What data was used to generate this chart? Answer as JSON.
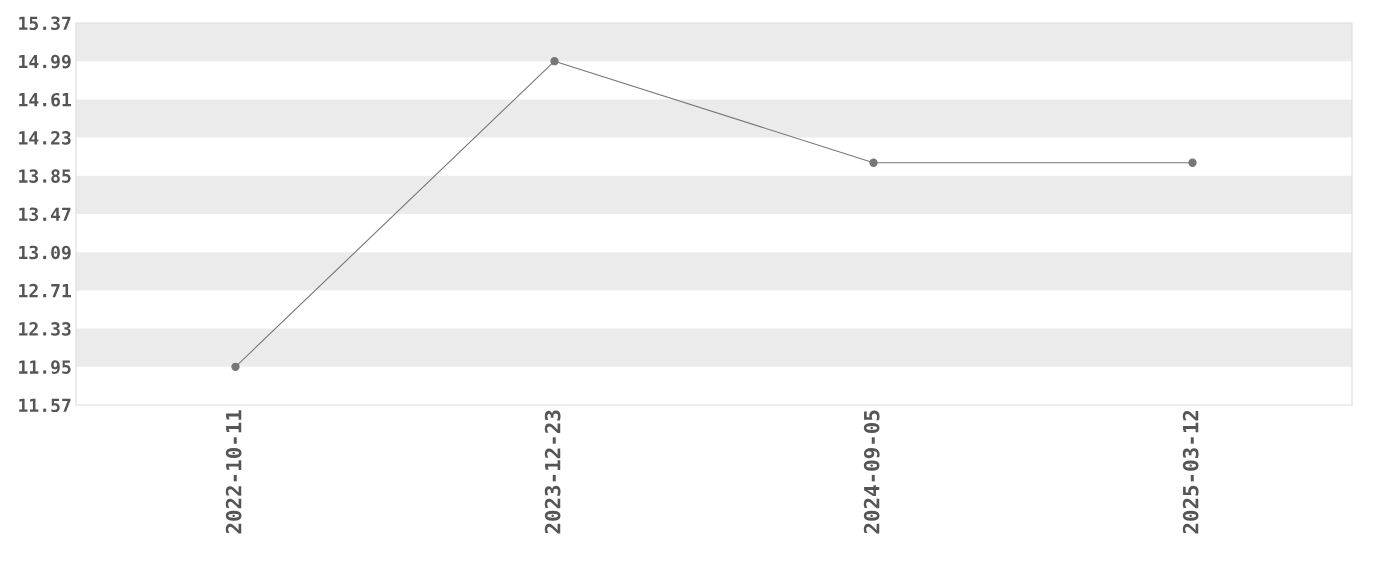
{
  "chart_data": {
    "type": "line",
    "categories": [
      "2022-10-11",
      "2023-12-23",
      "2024-09-05",
      "2025-03-12"
    ],
    "series": [
      {
        "color": "#777777",
        "values": [
          11.95,
          14.99,
          13.98,
          13.98
        ]
      }
    ],
    "ylim": [
      11.57,
      15.37
    ],
    "yticks": [
      {
        "value": 11.57,
        "label": "11.57"
      },
      {
        "value": 11.95,
        "label": "11.95"
      },
      {
        "value": 12.33,
        "label": "12.33"
      },
      {
        "value": 12.71,
        "label": "12.71"
      },
      {
        "value": 13.09,
        "label": "13.09"
      },
      {
        "value": 13.47,
        "label": "13.47"
      },
      {
        "value": 13.85,
        "label": "13.85"
      },
      {
        "value": 14.23,
        "label": "14.23"
      },
      {
        "value": 14.61,
        "label": "14.61"
      },
      {
        "value": 14.99,
        "label": "14.99"
      },
      {
        "value": 15.37,
        "label": "15.37"
      }
    ],
    "bands": [
      {
        "axis": "y",
        "from": 11.95,
        "to": 12.33,
        "color": "#ebebeb"
      },
      {
        "axis": "y",
        "from": 12.71,
        "to": 13.09,
        "color": "#ebebeb"
      },
      {
        "axis": "y",
        "from": 13.47,
        "to": 13.85,
        "color": "#ebebeb"
      },
      {
        "axis": "y",
        "from": 14.23,
        "to": 14.61,
        "color": "#ebebeb"
      },
      {
        "axis": "y",
        "from": 14.99,
        "to": 15.37,
        "color": "#ebebeb"
      }
    ],
    "marker": "circle",
    "line_style": "solid"
  }
}
